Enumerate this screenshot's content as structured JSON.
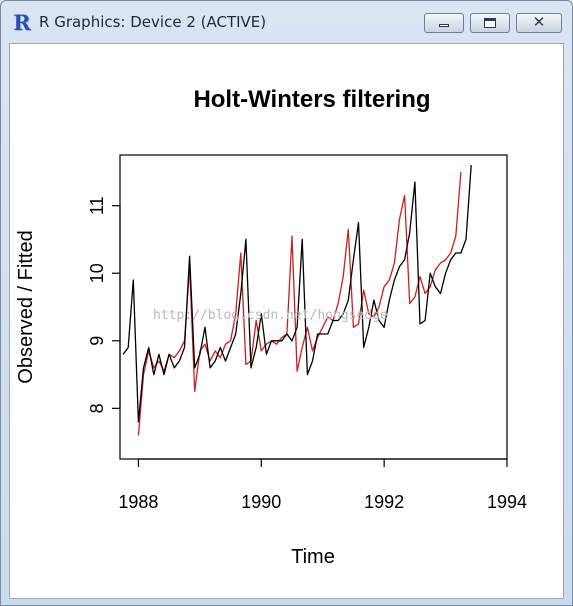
{
  "window": {
    "title": "R Graphics: Device 2 (ACTIVE)",
    "logo_text": "R",
    "controls": {
      "minimize": "minimize",
      "maximize": "maximize",
      "close_label": "✕"
    }
  },
  "watermark": "http://blog.csdn.net/hongsedge",
  "chart_data": {
    "type": "line",
    "title": "Holt-Winters filtering",
    "xlabel": "Time",
    "ylabel": "Observed / Fitted",
    "xlim": [
      1987.7,
      1994.0
    ],
    "ylim": [
      7.25,
      11.75
    ],
    "xticks": [
      1988,
      1990,
      1992,
      1994
    ],
    "yticks": [
      8,
      9,
      10,
      11
    ],
    "grid": false,
    "series": [
      {
        "role": "observed",
        "color": "#000000",
        "start": 1987.75,
        "step": 0.083333,
        "values": [
          8.8,
          8.9,
          9.9,
          7.8,
          8.6,
          8.9,
          8.5,
          8.8,
          8.5,
          8.8,
          8.6,
          8.7,
          8.9,
          10.25,
          8.6,
          8.8,
          9.2,
          8.6,
          8.7,
          8.9,
          8.7,
          8.9,
          9.1,
          9.7,
          10.5,
          8.6,
          8.9,
          9.4,
          8.8,
          9.0,
          9.0,
          9.0,
          9.1,
          9.0,
          9.2,
          10.5,
          8.5,
          8.7,
          9.1,
          9.1,
          9.1,
          9.3,
          9.3,
          9.4,
          9.6,
          10.2,
          10.75,
          8.9,
          9.2,
          9.6,
          9.3,
          9.2,
          9.6,
          9.9,
          10.1,
          10.2,
          10.6,
          11.35,
          9.25,
          9.3,
          10.0,
          9.8,
          9.7,
          10.0,
          10.2,
          10.3,
          10.3,
          10.5,
          11.6
        ]
      },
      {
        "role": "fitted",
        "color": "#cc1f1f",
        "start": 1988.0,
        "step": 0.083333,
        "values": [
          7.6,
          8.5,
          8.85,
          8.6,
          8.7,
          8.55,
          8.8,
          8.75,
          8.85,
          9.0,
          10.1,
          8.25,
          8.85,
          8.95,
          8.7,
          8.85,
          8.75,
          8.95,
          9.0,
          9.4,
          10.3,
          8.65,
          8.7,
          9.3,
          8.85,
          8.95,
          9.0,
          8.95,
          9.05,
          9.1,
          10.55,
          8.55,
          8.9,
          9.2,
          8.85,
          9.05,
          9.2,
          9.35,
          9.3,
          9.55,
          9.95,
          10.65,
          9.2,
          9.25,
          9.75,
          9.4,
          9.35,
          9.5,
          9.8,
          9.9,
          10.15,
          10.8,
          11.15,
          9.55,
          9.65,
          9.95,
          9.7,
          9.8,
          10.05,
          10.15,
          10.2,
          10.3,
          10.55,
          11.5
        ]
      }
    ]
  }
}
